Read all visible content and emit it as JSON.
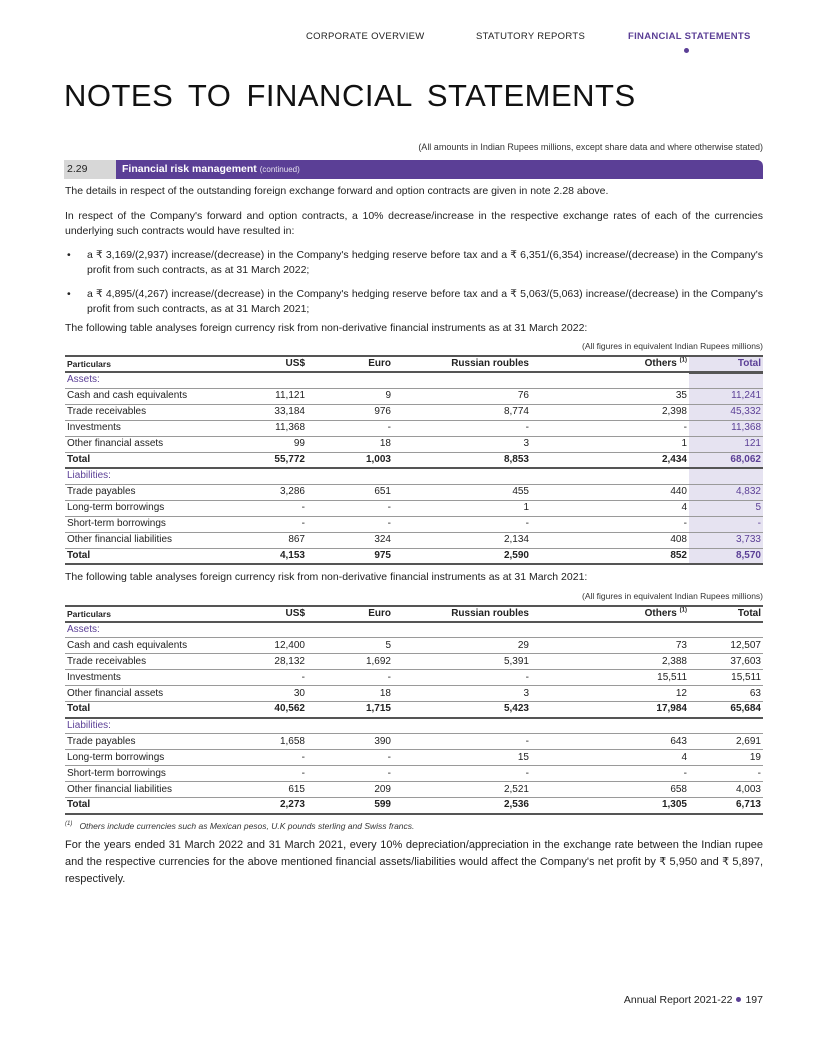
{
  "nav": {
    "items": [
      "CORPORATE OVERVIEW",
      "STATUTORY REPORTS",
      "FINANCIAL STATEMENTS"
    ],
    "active": 2
  },
  "title": "NOTES TO FINANCIAL STATEMENTS",
  "amounts_note": "(All amounts in Indian Rupees millions, except share data and where otherwise stated)",
  "section": {
    "number": "2.29",
    "title": "Financial risk management",
    "suffix": "(continued)"
  },
  "paragraphs": {
    "p1": "The details in respect of the outstanding foreign exchange forward and option contracts are given in note 2.28 above.",
    "p2": "In respect of the Company's forward and option contracts, a 10% decrease/increase in the respective exchange rates of each of the currencies underlying such contracts would have resulted in:",
    "b1": "a ₹ 3,169/(2,937) increase/(decrease) in the Company's hedging reserve before tax and a ₹ 6,351/(6,354) increase/(decrease) in the Company's profit from such contracts, as at 31 March 2022;",
    "b2": "a ₹ 4,895/(4,267) increase/(decrease) in the Company's hedging reserve before tax and a ₹ 5,063/(5,063) increase/(decrease) in the Company's profit from such contracts, as at 31 March 2021;",
    "p3": "The following table analyses foreign currency risk from non-derivative financial instruments as at 31 March 2022:",
    "p4": "The following table analyses foreign currency risk from non-derivative financial instruments as at 31 March 2021:",
    "p5": "For the years ended 31 March 2022 and 31 March 2021, every 10% depreciation/appreciation in the exchange rate between the Indian rupee and the respective currencies for the above mentioned financial assets/liabilities would affect the Company's net profit by ₹ 5,950 and ₹ 5,897, respectively."
  },
  "table_caption": "(All figures in equivalent Indian Rupees millions)",
  "headers": [
    "Particulars",
    "US$",
    "Euro",
    "Russian roubles",
    "Others",
    "Total"
  ],
  "others_sup": "(1)",
  "assets_label": "Assets:",
  "liabilities_label": "Liabilities:",
  "table_2022": {
    "assets": [
      [
        "Cash and cash equivalents",
        "11,121",
        "9",
        "76",
        "35",
        "11,241"
      ],
      [
        "Trade receivables",
        "33,184",
        "976",
        "8,774",
        "2,398",
        "45,332"
      ],
      [
        "Investments",
        "11,368",
        "-",
        "-",
        "-",
        "11,368"
      ],
      [
        "Other financial assets",
        "99",
        "18",
        "3",
        "1",
        "121"
      ]
    ],
    "assets_total": [
      "Total",
      "55,772",
      "1,003",
      "8,853",
      "2,434",
      "68,062"
    ],
    "liabilities": [
      [
        "Trade payables",
        "3,286",
        "651",
        "455",
        "440",
        "4,832"
      ],
      [
        "Long-term borrowings",
        "-",
        "-",
        "1",
        "4",
        "5"
      ],
      [
        "Short-term borrowings",
        "-",
        "-",
        "-",
        "-",
        "-"
      ],
      [
        "Other financial liabilities",
        "867",
        "324",
        "2,134",
        "408",
        "3,733"
      ]
    ],
    "liabilities_total": [
      "Total",
      "4,153",
      "975",
      "2,590",
      "852",
      "8,570"
    ]
  },
  "table_2021": {
    "assets": [
      [
        "Cash and cash equivalents",
        "12,400",
        "5",
        "29",
        "73",
        "12,507"
      ],
      [
        "Trade receivables",
        "28,132",
        "1,692",
        "5,391",
        "2,388",
        "37,603"
      ],
      [
        "Investments",
        "-",
        "-",
        "-",
        "15,511",
        "15,511"
      ],
      [
        "Other financial assets",
        "30",
        "18",
        "3",
        "12",
        "63"
      ]
    ],
    "assets_total": [
      "Total",
      "40,562",
      "1,715",
      "5,423",
      "17,984",
      "65,684"
    ],
    "liabilities": [
      [
        "Trade payables",
        "1,658",
        "390",
        "-",
        "643",
        "2,691"
      ],
      [
        "Long-term borrowings",
        "-",
        "-",
        "15",
        "4",
        "19"
      ],
      [
        "Short-term borrowings",
        "-",
        "-",
        "-",
        "-",
        "-"
      ],
      [
        "Other financial liabilities",
        "615",
        "209",
        "2,521",
        "658",
        "4,003"
      ]
    ],
    "liabilities_total": [
      "Total",
      "2,273",
      "599",
      "2,536",
      "1,305",
      "6,713"
    ]
  },
  "footnote": {
    "mark": "(1)",
    "text": "Others include currencies such as Mexican pesos, U.K pounds sterling and Swiss francs."
  },
  "footer": {
    "report": "Annual Report 2021-22",
    "page": "197"
  },
  "colors": {
    "accent": "#5b3f96",
    "highlight": "#e6e3f1"
  }
}
